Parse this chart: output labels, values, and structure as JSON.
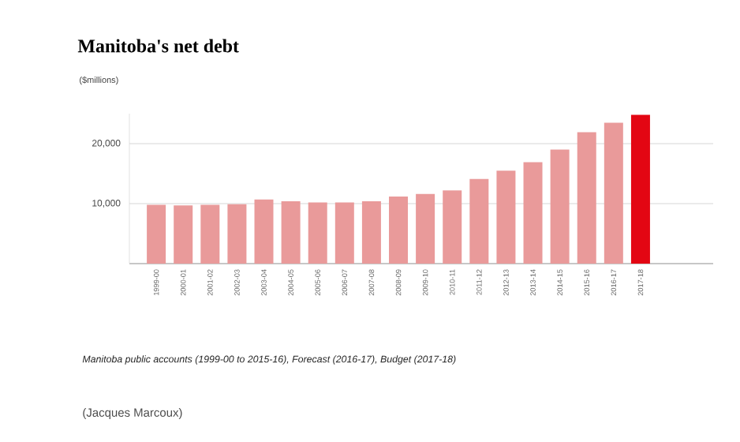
{
  "chart_data": {
    "type": "bar",
    "title": "Manitoba's net debt",
    "ylabel": "($millions)",
    "categories": [
      "1999-00",
      "2000-01",
      "2001-02",
      "2002-03",
      "2003-04",
      "2004-05",
      "2005-06",
      "2006-07",
      "2007-08",
      "2008-09",
      "2009-10",
      "2010-11",
      "2011-12",
      "2012-13",
      "2013-14",
      "2014-15",
      "2015-16",
      "2016-17",
      "2017-18"
    ],
    "values": [
      9800,
      9700,
      9800,
      9900,
      10700,
      10400,
      10200,
      10200,
      10400,
      11200,
      11600,
      12200,
      14100,
      15500,
      16900,
      19000,
      21900,
      23500,
      24800
    ],
    "colors": [
      "#e99a9a",
      "#e99a9a",
      "#e99a9a",
      "#e99a9a",
      "#e99a9a",
      "#e99a9a",
      "#e99a9a",
      "#e99a9a",
      "#e99a9a",
      "#e99a9a",
      "#e99a9a",
      "#e99a9a",
      "#e99a9a",
      "#e99a9a",
      "#e99a9a",
      "#e99a9a",
      "#e99a9a",
      "#e99a9a",
      "#e30613"
    ],
    "ylim": [
      0,
      25000
    ],
    "yticks": [
      {
        "value": 10000,
        "label": "10,000"
      },
      {
        "value": 20000,
        "label": "20,000"
      }
    ],
    "grid": "y",
    "annotations": [
      "Manitoba public accounts (1999-00 to 2015-16), Forecast (2016-17), Budget (2017-18)",
      "(Jacques Marcoux)"
    ]
  }
}
